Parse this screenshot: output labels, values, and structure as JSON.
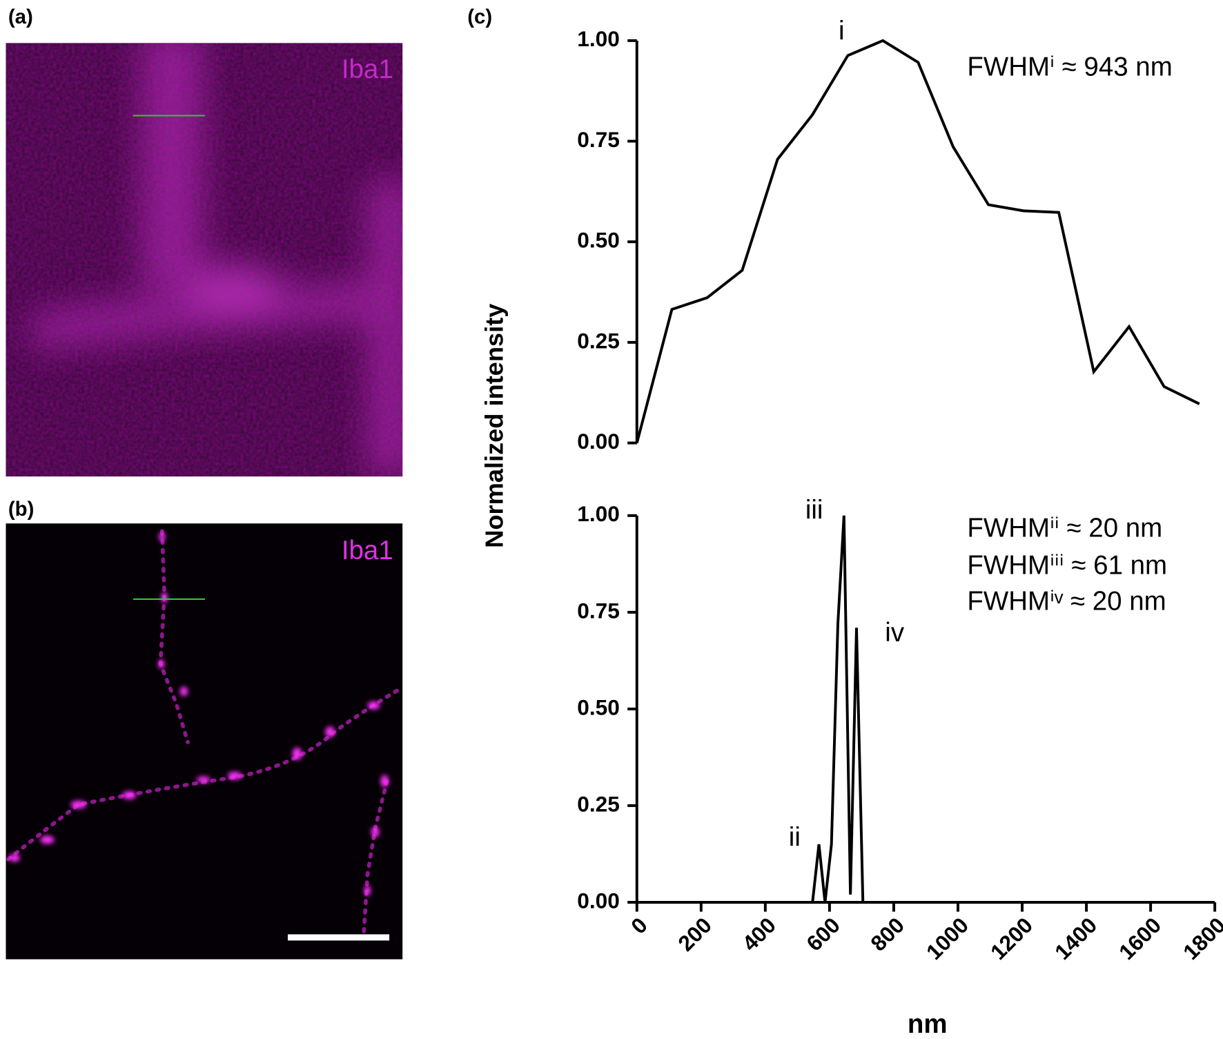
{
  "panels": [
    {
      "label": "(a)",
      "stain": "Iba1"
    },
    {
      "label": "(b)",
      "stain": "Iba1"
    },
    {
      "label": "(c)"
    }
  ],
  "chart_data": [
    {
      "type": "line",
      "ylabel": "Normalized intensity",
      "x": [
        0,
        109,
        219,
        328,
        438,
        547,
        657,
        766,
        876,
        985,
        1095,
        1204,
        1314,
        1423,
        1533,
        1642,
        1752
      ],
      "values": [
        0,
        0.332,
        0.361,
        0.429,
        0.705,
        0.816,
        0.963,
        1.0,
        0.946,
        0.736,
        0.592,
        0.577,
        0.573,
        0.177,
        0.289,
        0.14,
        0.097
      ],
      "color": "#000000",
      "xlim": [
        0,
        1800
      ],
      "ylim": [
        0,
        1
      ],
      "yticks": [
        {
          "value": 0,
          "label": "0.00"
        },
        {
          "value": 0.25,
          "label": "0.25"
        },
        {
          "value": 0.5,
          "label": "0.50"
        },
        {
          "value": 0.75,
          "label": "0.75"
        },
        {
          "value": 1,
          "label": "1.00"
        }
      ],
      "annotations": [
        "i",
        "FWHMⁱ ≈ 943 nm"
      ]
    },
    {
      "type": "line",
      "xlabel": "nm",
      "x": [
        547,
        567,
        586,
        606,
        626,
        645,
        665,
        684,
        704
      ],
      "values": [
        0,
        0.15,
        0,
        0.15,
        0.72,
        1.0,
        0.02,
        0.71,
        0
      ],
      "color": "#000000",
      "xlim": [
        0,
        1800
      ],
      "ylim": [
        0,
        1
      ],
      "xticks": [
        0,
        200,
        400,
        600,
        800,
        1000,
        1200,
        1400,
        1600,
        1800
      ],
      "yticks": [
        {
          "value": 0,
          "label": "0.00"
        },
        {
          "value": 0.25,
          "label": "0.25"
        },
        {
          "value": 0.5,
          "label": "0.50"
        },
        {
          "value": 0.75,
          "label": "0.75"
        },
        {
          "value": 1,
          "label": "1.00"
        }
      ],
      "annotations": [
        "iii",
        "iv",
        "ii",
        "FWHMⁱⁱ ≈ 20 nm",
        "FWHMⁱⁱⁱ ≈ 61 nm",
        "FWHMⁱᵛ ≈ 20 nm"
      ]
    }
  ]
}
